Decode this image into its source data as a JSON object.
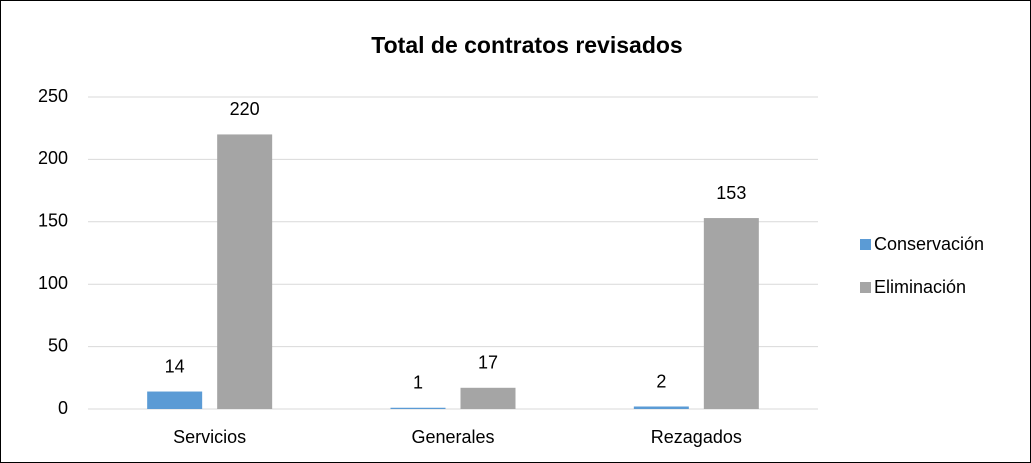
{
  "chart_data": {
    "type": "bar",
    "title": "Total de contratos revisados",
    "categories": [
      "Servicios",
      "Generales",
      "Rezagados"
    ],
    "series": [
      {
        "name": "Conservación",
        "color": "#5b9bd5",
        "values": [
          14,
          1,
          2
        ]
      },
      {
        "name": "Eliminación",
        "color": "#a5a5a5",
        "values": [
          220,
          17,
          153
        ]
      }
    ],
    "ylim": [
      0,
      250
    ],
    "yticks": [
      0,
      50,
      100,
      150,
      200,
      250
    ],
    "grid": true,
    "legend": "right"
  }
}
